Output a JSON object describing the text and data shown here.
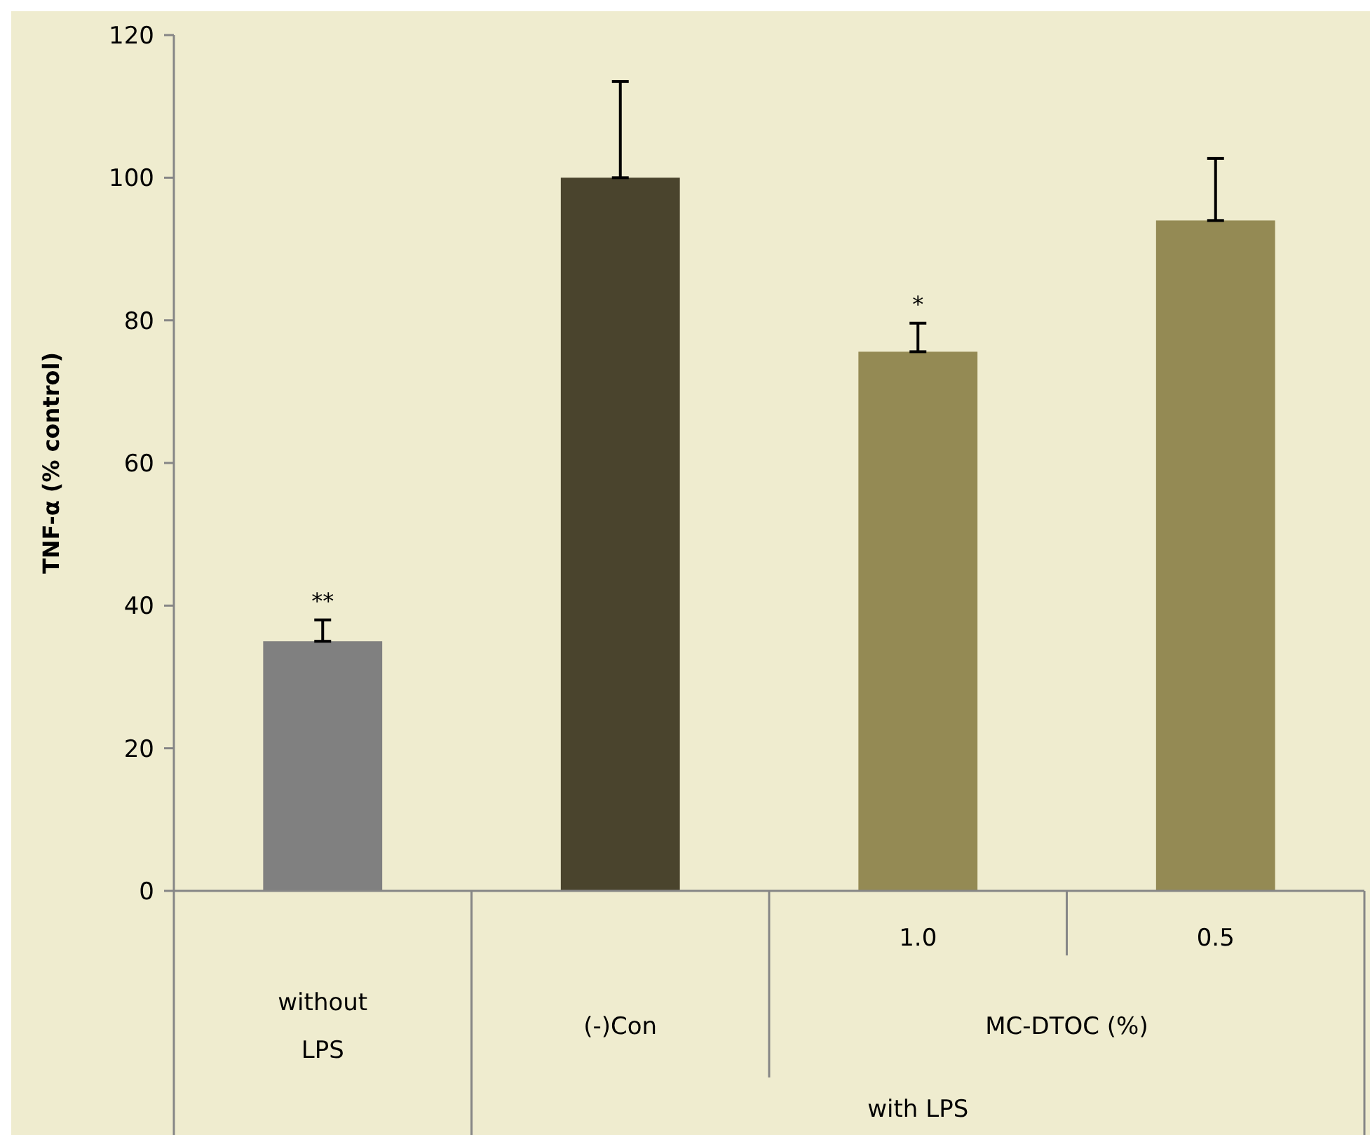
{
  "chart_data": {
    "type": "bar",
    "ylabel": "TNF-α (% control)",
    "categories": [
      "without LPS",
      "(-)Con",
      "1.0",
      "0.5"
    ],
    "values": [
      35,
      100,
      75.6,
      94
    ],
    "colors": [
      "#808080",
      "#4a442d",
      "#948a54",
      "#948a54"
    ],
    "errors": [
      [
        35,
        38
      ],
      [
        100,
        113.5
      ],
      [
        75.6,
        79.6
      ],
      [
        94,
        102.7
      ]
    ],
    "ylim": [
      0,
      120
    ],
    "yticks": [
      0,
      20,
      40,
      60,
      80,
      100,
      120
    ],
    "annotations": [
      {
        "text": "**",
        "x": "without LPS",
        "y": 38
      },
      {
        "text": "*",
        "x": "1.0",
        "y": 79.6
      },
      "MC-DTOC (%)",
      "with LPS"
    ]
  }
}
